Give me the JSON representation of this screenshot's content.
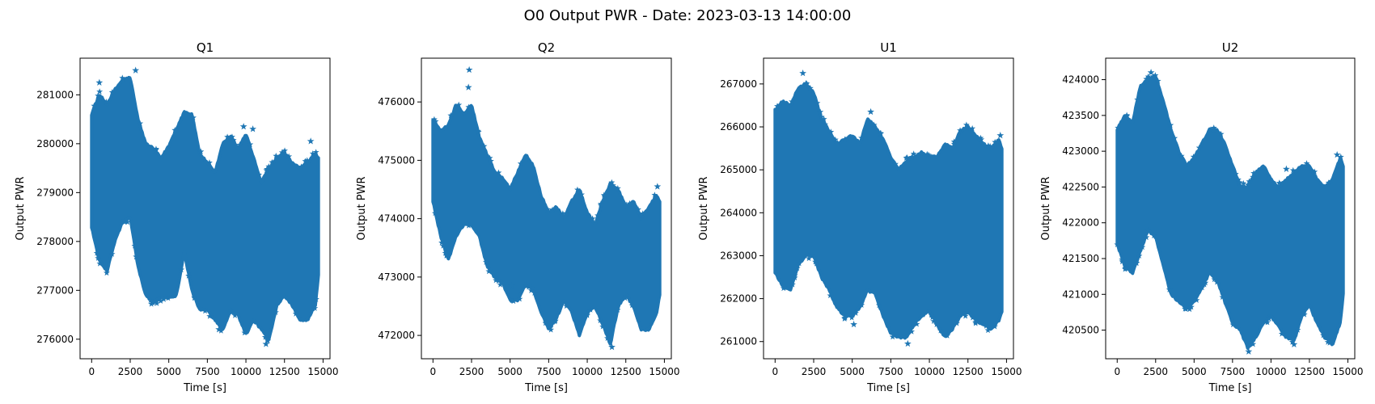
{
  "figure": {
    "title": "O0 Output PWR - Date: 2023-03-13 14:00:00"
  },
  "style": {
    "series_color": "#1f77b4",
    "axes_color": "#000000",
    "background": "#ffffff"
  },
  "chart_data": [
    {
      "type": "scatter",
      "marker": "star",
      "title": "Q1",
      "xlabel": "Time [s]",
      "ylabel": "Output PWR",
      "xlim": [
        -750,
        15450
      ],
      "ylim": [
        275600,
        281750
      ],
      "xticks": [
        0,
        2500,
        5000,
        7500,
        10000,
        12500,
        15000
      ],
      "yticks": [
        276000,
        277000,
        278000,
        279000,
        280000,
        281000
      ],
      "grid": false,
      "x_range": [
        0,
        14700
      ],
      "envelope": {
        "x": [
          0,
          500,
          1000,
          1500,
          2000,
          2500,
          3000,
          3500,
          4000,
          4500,
          5000,
          5500,
          6000,
          6500,
          7000,
          7500,
          8000,
          8500,
          9000,
          9500,
          10000,
          10500,
          11000,
          11500,
          12000,
          12500,
          13000,
          13500,
          14000,
          14500,
          14700
        ],
        "upper": [
          280600,
          281000,
          280800,
          281100,
          281300,
          281350,
          280500,
          280000,
          279900,
          279700,
          279950,
          280300,
          280650,
          280600,
          279800,
          279600,
          279400,
          280000,
          280150,
          279900,
          280200,
          279700,
          279200,
          279500,
          279700,
          279800,
          279600,
          279500,
          279600,
          279800,
          279700
        ],
        "lower": [
          278300,
          277600,
          277400,
          278000,
          278400,
          278500,
          277500,
          276900,
          276750,
          276850,
          276850,
          276900,
          277800,
          277000,
          276600,
          276600,
          276400,
          276200,
          276600,
          276500,
          276100,
          276400,
          276200,
          276000,
          276700,
          276900,
          276700,
          276400,
          276400,
          276700,
          277300
        ]
      },
      "outliers": [
        [
          2850,
          281500
        ],
        [
          500,
          281250
        ],
        [
          9850,
          280350
        ],
        [
          10450,
          280300
        ],
        [
          11300,
          275900
        ],
        [
          8250,
          276200
        ],
        [
          14200,
          280050
        ]
      ]
    },
    {
      "type": "scatter",
      "marker": "star",
      "title": "Q2",
      "xlabel": "Time [s]",
      "ylabel": "Output PWR",
      "xlim": [
        -750,
        15450
      ],
      "ylim": [
        471600,
        476750
      ],
      "xticks": [
        0,
        2500,
        5000,
        7500,
        10000,
        12500,
        15000
      ],
      "yticks": [
        472000,
        473000,
        474000,
        475000,
        476000
      ],
      "grid": false,
      "x_range": [
        0,
        14700
      ],
      "envelope": {
        "x": [
          0,
          500,
          1000,
          1500,
          2000,
          2500,
          3000,
          3500,
          4000,
          4500,
          5000,
          5500,
          6000,
          6500,
          7000,
          7500,
          8000,
          8500,
          9000,
          9500,
          10000,
          10500,
          11000,
          11500,
          12000,
          12500,
          13000,
          13500,
          14000,
          14500,
          14700
        ],
        "upper": [
          475700,
          475500,
          475600,
          475950,
          475800,
          475950,
          475400,
          475100,
          474800,
          474700,
          474500,
          474800,
          475100,
          474900,
          474400,
          474100,
          474200,
          474000,
          474300,
          474500,
          474100,
          473900,
          474300,
          474600,
          474500,
          474200,
          474300,
          474000,
          474200,
          474400,
          474300
        ],
        "lower": [
          474300,
          473700,
          473300,
          473700,
          473900,
          473900,
          473700,
          473200,
          473000,
          472900,
          472600,
          472600,
          472900,
          472800,
          472400,
          472100,
          472300,
          472600,
          472400,
          472000,
          472400,
          472500,
          472200,
          471850,
          472500,
          472700,
          472500,
          472100,
          472100,
          472400,
          472700
        ]
      },
      "outliers": [
        [
          2350,
          476550
        ],
        [
          2300,
          476250
        ],
        [
          14550,
          474550
        ],
        [
          11600,
          471800
        ],
        [
          5100,
          472850
        ]
      ]
    },
    {
      "type": "scatter",
      "marker": "star",
      "title": "U1",
      "xlabel": "Time [s]",
      "ylabel": "Output PWR",
      "xlim": [
        -750,
        15450
      ],
      "ylim": [
        260600,
        267600
      ],
      "xticks": [
        0,
        2500,
        5000,
        7500,
        10000,
        12500,
        15000
      ],
      "yticks": [
        261000,
        262000,
        263000,
        264000,
        265000,
        266000,
        267000
      ],
      "grid": false,
      "x_range": [
        0,
        14700
      ],
      "envelope": {
        "x": [
          0,
          500,
          1000,
          1500,
          2000,
          2500,
          3000,
          3500,
          4000,
          4500,
          5000,
          5500,
          6000,
          6500,
          7000,
          7500,
          8000,
          8500,
          9000,
          9500,
          10000,
          10500,
          11000,
          11500,
          12000,
          12500,
          13000,
          13500,
          14000,
          14500,
          14700
        ],
        "upper": [
          266400,
          266600,
          266500,
          266900,
          267000,
          266800,
          266200,
          265900,
          265600,
          265700,
          265800,
          265600,
          266200,
          266000,
          265700,
          265300,
          265000,
          265200,
          265300,
          265400,
          265300,
          265300,
          265600,
          265500,
          265900,
          266000,
          265800,
          265600,
          265500,
          265700,
          265500
        ],
        "lower": [
          262600,
          262300,
          262200,
          262800,
          263000,
          263000,
          262500,
          262200,
          261800,
          261600,
          261600,
          261800,
          262200,
          262100,
          261600,
          261200,
          261100,
          261100,
          261400,
          261600,
          261700,
          261400,
          261100,
          261300,
          261600,
          261700,
          261500,
          261400,
          261300,
          261500,
          261700
        ]
      },
      "outliers": [
        [
          1800,
          267250
        ],
        [
          6200,
          266350
        ],
        [
          14600,
          265800
        ],
        [
          8600,
          260950
        ],
        [
          5100,
          261400
        ]
      ]
    },
    {
      "type": "scatter",
      "marker": "star",
      "title": "U2",
      "xlabel": "Time [s]",
      "ylabel": "Output PWR",
      "xlim": [
        -750,
        15450
      ],
      "ylim": [
        420100,
        424300
      ],
      "xticks": [
        0,
        2500,
        5000,
        7500,
        10000,
        12500,
        15000
      ],
      "yticks": [
        420500,
        421000,
        421500,
        422000,
        422500,
        423000,
        423500,
        424000
      ],
      "grid": false,
      "x_range": [
        0,
        14700
      ],
      "envelope": {
        "x": [
          0,
          500,
          1000,
          1500,
          2000,
          2500,
          3000,
          3500,
          4000,
          4500,
          5000,
          5500,
          6000,
          6500,
          7000,
          7500,
          8000,
          8500,
          9000,
          9500,
          10000,
          10500,
          11000,
          11500,
          12000,
          12500,
          13000,
          13500,
          14000,
          14500,
          14700
        ],
        "upper": [
          423300,
          423500,
          423400,
          423900,
          424000,
          424050,
          423700,
          423300,
          423000,
          422800,
          422900,
          423100,
          423300,
          423300,
          423100,
          422800,
          422500,
          422500,
          422700,
          422800,
          422600,
          422500,
          422600,
          422700,
          422800,
          422800,
          422600,
          422500,
          422600,
          422900,
          422800
        ],
        "lower": [
          421700,
          421400,
          421300,
          421600,
          421900,
          421800,
          421400,
          421000,
          420900,
          420800,
          420900,
          421100,
          421300,
          421200,
          420900,
          420600,
          420500,
          420250,
          420400,
          420600,
          420700,
          420550,
          420400,
          420350,
          420700,
          420850,
          420600,
          420400,
          420300,
          420600,
          421000
        ]
      },
      "outliers": [
        [
          2200,
          424100
        ],
        [
          11000,
          422750
        ],
        [
          14300,
          422950
        ],
        [
          8550,
          420200
        ],
        [
          11500,
          420300
        ]
      ]
    }
  ]
}
